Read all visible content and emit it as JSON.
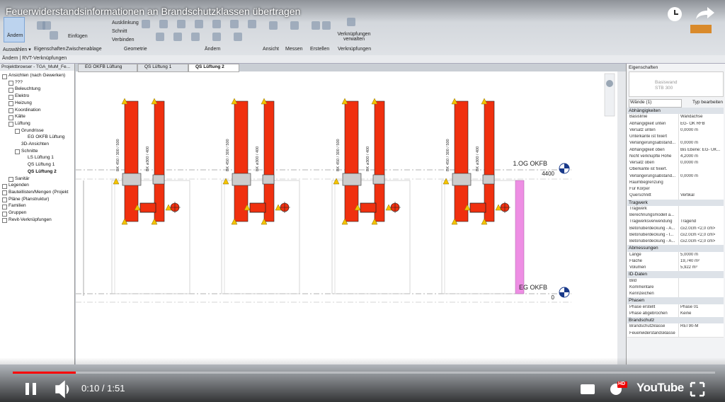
{
  "video": {
    "title": "Feuerwiderstandsinformationen an Brandschutzklassen übertragen",
    "time": "0:10 / 1:51",
    "logo": "YouTube",
    "badge": "HD"
  },
  "ribbon": {
    "panels": [
      "Auswählen ▾",
      "Eigenschaften",
      "Zwischenablage",
      "Geometrie",
      "Ändern",
      "Ansicht",
      "Messen",
      "Erstellen",
      "Verknüpfungen"
    ],
    "buttons": [
      "Ändern",
      "Einfügen",
      "Ausklinkung",
      "Schnitt",
      "Verbinden",
      "Verknüpfungen verwalten"
    ]
  },
  "context_bar": "Ändern | RVT-Verknüpfungen",
  "browser": {
    "title": "Projektbrowser - TGA_MuM_Fe...",
    "tree": [
      {
        "label": "Ansichten (nach Gewerken)",
        "children": [
          {
            "label": "???"
          },
          {
            "label": "Beleuchtung"
          },
          {
            "label": "Elektro"
          },
          {
            "label": "Heizung"
          },
          {
            "label": "Koordination"
          },
          {
            "label": "Kälte"
          },
          {
            "label": "Lüftung",
            "children": [
              {
                "label": "Grundrisse",
                "children": [
                  {
                    "label": "EG OKFB Lüftung"
                  }
                ]
              },
              {
                "label": "3D-Ansichten"
              },
              {
                "label": "Schnitte",
                "children": [
                  {
                    "label": "LS Lüftung 1"
                  },
                  {
                    "label": "QS Lüftung 1"
                  },
                  {
                    "label": "QS Lüftung 2",
                    "selected": true
                  }
                ]
              }
            ]
          },
          {
            "label": "Sanitär"
          }
        ]
      },
      {
        "label": "Legenden"
      },
      {
        "label": "Bauteillisten/Mengen (Projekt"
      },
      {
        "label": "Pläne (Planstruktur)"
      },
      {
        "label": "Familien"
      },
      {
        "label": "Gruppen"
      },
      {
        "label": "Revit-Verknüpfungen"
      }
    ]
  },
  "view_tabs": {
    "tabs": [
      "EG OKFB Lüftung",
      "QS Lüftung 1",
      "QS Lüftung 2"
    ],
    "active": 2
  },
  "drawing": {
    "levels": [
      {
        "name": "1.OG OKFB",
        "elevation": "4400"
      },
      {
        "name": "EG OKFB",
        "elevation": "0"
      }
    ],
    "duct_labels": [
      "BK 450 / 300 / 500",
      "BK ø300 / 400"
    ]
  },
  "properties": {
    "title": "Eigenschaften",
    "family": "Basiswand",
    "type": "STB 300",
    "selector": "Wände (1)",
    "edit_type": "Typ bearbeiten",
    "sections": [
      {
        "name": "Abhängigkeiten",
        "rows": [
          {
            "label": "Basislinie",
            "value": "Wandachse"
          },
          {
            "label": "Abhängigkeit unten",
            "value": "EG- OK RFB"
          },
          {
            "label": "Versatz unten",
            "value": "0,0000 m"
          },
          {
            "label": "Unterkante ist fixiert"
          },
          {
            "label": "Verlängerungsabstand...",
            "value": "0,0000 m"
          },
          {
            "label": "Abhängigkeit oben",
            "value": "Bis Ebene: EG- UK..."
          },
          {
            "label": "Nicht verknüpfte Höhe",
            "value": "4,2000 m"
          },
          {
            "label": "Versatz oben",
            "value": "0,0000 m"
          },
          {
            "label": "Oberkante ist fixiert."
          },
          {
            "label": "Verlängerungsabstand...",
            "value": "0,0000 m"
          },
          {
            "label": "Raumbegrenzung"
          },
          {
            "label": "Für Körper"
          },
          {
            "label": "Querschnitt",
            "value": "Vertikal"
          }
        ]
      },
      {
        "name": "Tragwerk",
        "rows": [
          {
            "label": "Tragwerk"
          },
          {
            "label": "Berechnungsmodell a..."
          },
          {
            "label": "Tragwerksverwendung",
            "value": "Tragend"
          },
          {
            "label": "Betonüberdeckung - A...",
            "value": "c≥2.0cm <2,0 cm>"
          },
          {
            "label": "Betonüberdeckung - I...",
            "value": "c≥2.0cm <2,0 cm>"
          },
          {
            "label": "Betonüberdeckung - A...",
            "value": "c≥2.0cm <2,0 cm>"
          }
        ]
      },
      {
        "name": "Abmessungen",
        "rows": [
          {
            "label": "Länge",
            "value": "5,0000 m"
          },
          {
            "label": "Fläche",
            "value": "19,740 m²"
          },
          {
            "label": "Volumen",
            "value": "5,922 m³"
          }
        ]
      },
      {
        "name": "ID-Daten",
        "rows": [
          {
            "label": "Bild"
          },
          {
            "label": "Kommentare"
          },
          {
            "label": "Kennzeichen"
          }
        ]
      },
      {
        "name": "Phasen",
        "rows": [
          {
            "label": "Phase erstellt",
            "value": "Phase 01"
          },
          {
            "label": "Phase abgebrochen",
            "value": "Keine"
          }
        ]
      },
      {
        "name": "Brandschutz",
        "rows": [
          {
            "label": "Brandschutzklasse",
            "value": "REI 90-M"
          },
          {
            "label": "Feuerwiderstandsklasse"
          }
        ]
      }
    ]
  }
}
